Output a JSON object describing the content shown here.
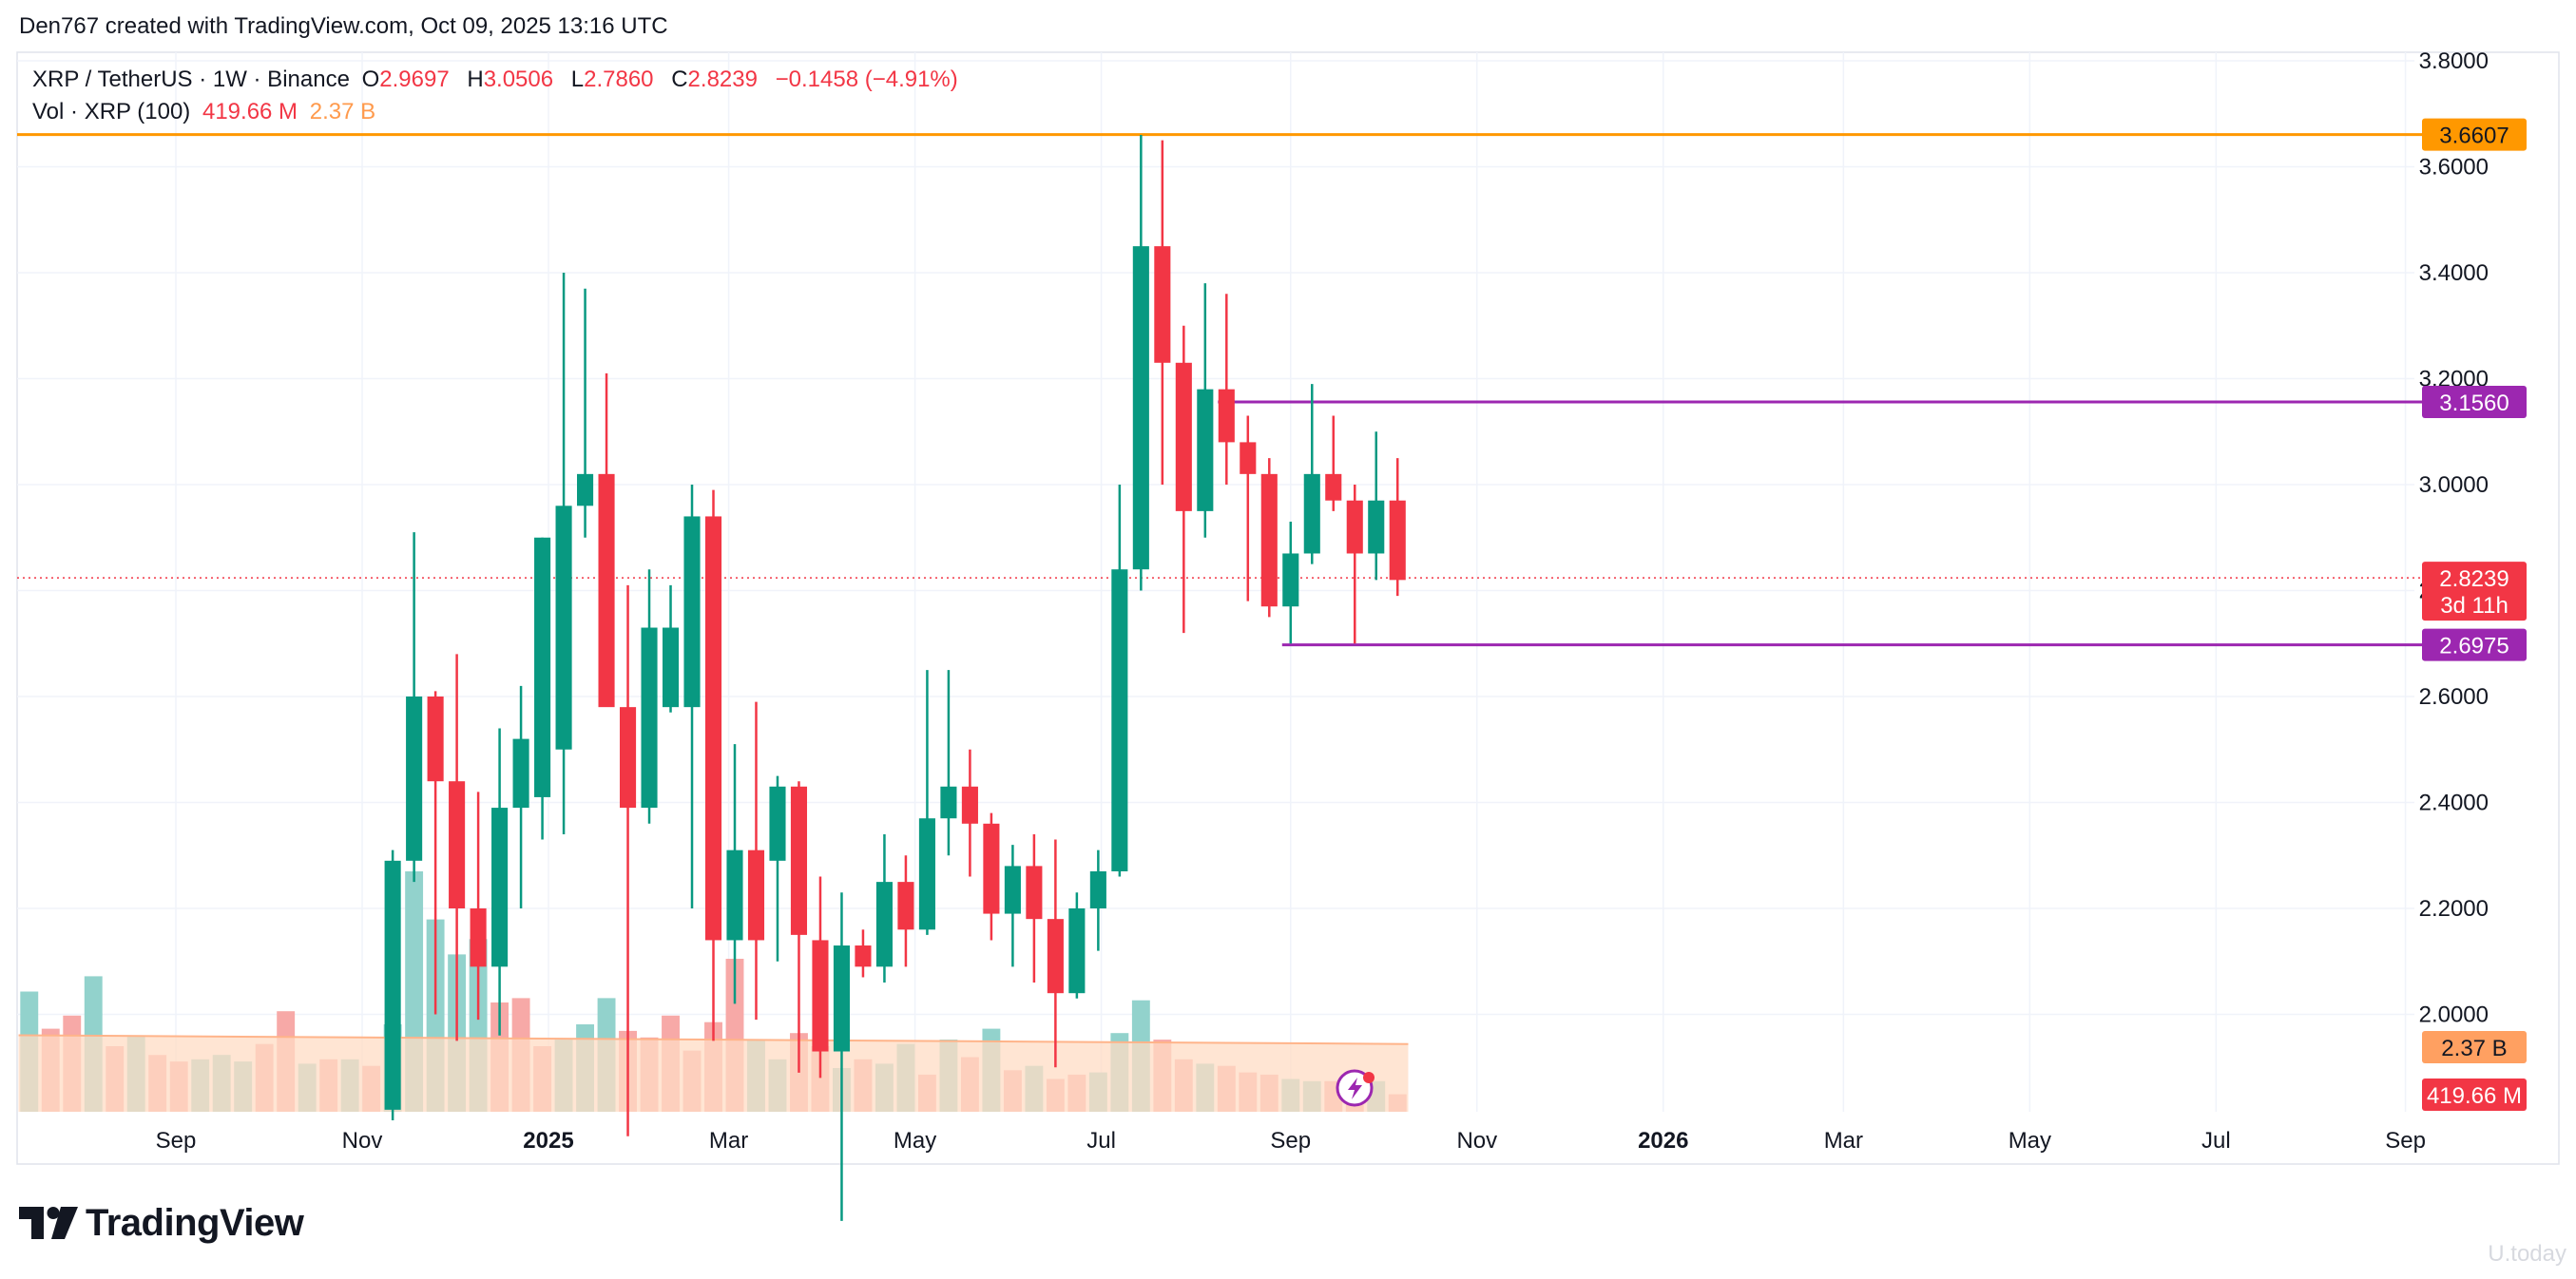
{
  "header": {
    "attribution": "Den767 created with TradingView.com, Oct 09, 2025 13:16 UTC"
  },
  "legend": {
    "symbol": "XRP / TetherUS · 1W · Binance",
    "o_label": "O",
    "o_value": "2.9697",
    "h_label": "H",
    "h_value": "3.0506",
    "l_label": "L",
    "l_value": "2.7860",
    "c_label": "C",
    "c_value": "2.8239",
    "change": "−0.1458 (−4.91%)",
    "vol_label": "Vol · XRP (100)",
    "vol_value": "419.66 M",
    "vol_ma": "2.37 B"
  },
  "colors": {
    "up": "#089981",
    "down": "#f23645",
    "vol_up": "#92d2cc",
    "vol_down": "#f7a9a7",
    "vol_ma_fill": "#ffdcc4",
    "orange_line": "#ff9800",
    "purple_line": "#9c27b0",
    "grid": "#f0f3fa",
    "axis_text": "#131722"
  },
  "badges": {
    "orange_level": "3.6607",
    "purple_high": "3.1560",
    "last_price": "2.8239",
    "countdown": "3d 11h",
    "purple_low": "2.6975",
    "vol_ma": "2.37 B",
    "vol_last": "419.66 M"
  },
  "logo": {
    "text": "TradingView",
    "icon": "tradingview-logo-icon"
  },
  "watermark": "U.today",
  "chart_data": {
    "type": "candlestick",
    "symbol": "XRP / TetherUS",
    "interval": "1W",
    "exchange": "Binance",
    "y_axis": {
      "range": [
        1.8,
        3.83
      ],
      "ticks": [
        "3.8000",
        "3.6000",
        "3.4000",
        "3.2000",
        "3.0000",
        "2.8000",
        "2.6000",
        "2.4000",
        "2.2000",
        "2.0000"
      ]
    },
    "x_axis": {
      "ticks": [
        {
          "label": "Sep",
          "date": "2024-09-01"
        },
        {
          "label": "Nov",
          "date": "2024-11-01"
        },
        {
          "label": "2025",
          "date": "2025-01-01",
          "bold": true
        },
        {
          "label": "Mar",
          "date": "2025-03-01"
        },
        {
          "label": "May",
          "date": "2025-05-01"
        },
        {
          "label": "Jul",
          "date": "2025-07-01"
        },
        {
          "label": "Sep",
          "date": "2025-09-01"
        },
        {
          "label": "Nov",
          "date": "2025-11-01"
        },
        {
          "label": "2026",
          "date": "2026-01-01",
          "bold": true
        },
        {
          "label": "Mar",
          "date": "2026-03-01"
        },
        {
          "label": "May",
          "date": "2026-05-01"
        },
        {
          "label": "Jul",
          "date": "2026-07-01"
        },
        {
          "label": "Sep",
          "date": "2026-09-01"
        }
      ]
    },
    "horizontal_lines": [
      {
        "price": 3.6607,
        "color": "#ff9800",
        "start": "2024-07-15"
      },
      {
        "price": 3.156,
        "color": "#9c27b0",
        "start": "2025-08-11"
      },
      {
        "price": 2.6975,
        "color": "#9c27b0",
        "start": "2025-09-01"
      }
    ],
    "last_price_line": 2.8239,
    "candles": [
      {
        "date": "2024-11-11",
        "o": 1.82,
        "h": 2.31,
        "l": 1.8,
        "c": 2.29
      },
      {
        "date": "2024-11-18",
        "o": 2.29,
        "h": 2.91,
        "l": 2.25,
        "c": 2.6
      },
      {
        "date": "2024-11-25",
        "o": 2.6,
        "h": 2.61,
        "l": 2.0,
        "c": 2.44
      },
      {
        "date": "2024-12-02",
        "o": 2.44,
        "h": 2.68,
        "l": 1.95,
        "c": 2.2
      },
      {
        "date": "2024-12-09",
        "o": 2.2,
        "h": 2.42,
        "l": 1.99,
        "c": 2.09
      },
      {
        "date": "2024-12-16",
        "o": 2.09,
        "h": 2.54,
        "l": 1.96,
        "c": 2.39
      },
      {
        "date": "2024-12-23",
        "o": 2.39,
        "h": 2.62,
        "l": 2.2,
        "c": 2.52
      },
      {
        "date": "2024-12-30",
        "o": 2.41,
        "h": 2.9,
        "l": 2.33,
        "c": 2.9
      },
      {
        "date": "2025-01-06",
        "o": 2.5,
        "h": 3.4,
        "l": 2.34,
        "c": 2.96
      },
      {
        "date": "2025-01-13",
        "o": 2.96,
        "h": 3.37,
        "l": 2.9,
        "c": 3.02
      },
      {
        "date": "2025-01-20",
        "o": 3.02,
        "h": 3.21,
        "l": 2.6,
        "c": 2.58
      },
      {
        "date": "2025-01-27",
        "o": 2.58,
        "h": 2.81,
        "l": 1.77,
        "c": 2.39
      },
      {
        "date": "2025-02-03",
        "o": 2.39,
        "h": 2.84,
        "l": 2.36,
        "c": 2.73
      },
      {
        "date": "2025-02-10",
        "o": 2.58,
        "h": 2.81,
        "l": 2.57,
        "c": 2.73
      },
      {
        "date": "2025-02-17",
        "o": 2.58,
        "h": 3.0,
        "l": 2.2,
        "c": 2.94
      },
      {
        "date": "2025-02-24",
        "o": 2.94,
        "h": 2.99,
        "l": 1.95,
        "c": 2.14
      },
      {
        "date": "2025-03-03",
        "o": 2.14,
        "h": 2.51,
        "l": 2.02,
        "c": 2.31
      },
      {
        "date": "2025-03-10",
        "o": 2.31,
        "h": 2.59,
        "l": 1.99,
        "c": 2.14
      },
      {
        "date": "2025-03-17",
        "o": 2.29,
        "h": 2.45,
        "l": 2.1,
        "c": 2.43
      },
      {
        "date": "2025-03-24",
        "o": 2.43,
        "h": 2.44,
        "l": 1.89,
        "c": 2.15
      },
      {
        "date": "2025-03-31",
        "o": 2.14,
        "h": 2.26,
        "l": 1.88,
        "c": 1.93
      },
      {
        "date": "2025-04-07",
        "o": 1.93,
        "h": 2.23,
        "l": 1.61,
        "c": 2.13
      },
      {
        "date": "2025-04-14",
        "o": 2.13,
        "h": 2.16,
        "l": 2.07,
        "c": 2.09
      },
      {
        "date": "2025-04-21",
        "o": 2.09,
        "h": 2.34,
        "l": 2.06,
        "c": 2.25
      },
      {
        "date": "2025-04-28",
        "o": 2.25,
        "h": 2.3,
        "l": 2.09,
        "c": 2.16
      },
      {
        "date": "2025-05-05",
        "o": 2.16,
        "h": 2.65,
        "l": 2.15,
        "c": 2.37
      },
      {
        "date": "2025-05-12",
        "o": 2.37,
        "h": 2.65,
        "l": 2.3,
        "c": 2.43
      },
      {
        "date": "2025-05-19",
        "o": 2.43,
        "h": 2.5,
        "l": 2.26,
        "c": 2.36
      },
      {
        "date": "2025-05-26",
        "o": 2.36,
        "h": 2.38,
        "l": 2.14,
        "c": 2.19
      },
      {
        "date": "2025-06-02",
        "o": 2.19,
        "h": 2.32,
        "l": 2.09,
        "c": 2.28
      },
      {
        "date": "2025-06-09",
        "o": 2.28,
        "h": 2.34,
        "l": 2.06,
        "c": 2.18
      },
      {
        "date": "2025-06-16",
        "o": 2.18,
        "h": 2.33,
        "l": 1.9,
        "c": 2.04
      },
      {
        "date": "2025-06-23",
        "o": 2.04,
        "h": 2.23,
        "l": 2.03,
        "c": 2.2
      },
      {
        "date": "2025-06-30",
        "o": 2.2,
        "h": 2.31,
        "l": 2.12,
        "c": 2.27
      },
      {
        "date": "2025-07-07",
        "o": 2.27,
        "h": 3.0,
        "l": 2.26,
        "c": 2.84
      },
      {
        "date": "2025-07-14",
        "o": 2.84,
        "h": 3.66,
        "l": 2.8,
        "c": 3.45
      },
      {
        "date": "2025-07-21",
        "o": 3.45,
        "h": 3.65,
        "l": 3.0,
        "c": 3.23
      },
      {
        "date": "2025-07-28",
        "o": 3.23,
        "h": 3.3,
        "l": 2.72,
        "c": 2.95
      },
      {
        "date": "2025-08-04",
        "o": 2.95,
        "h": 3.38,
        "l": 2.9,
        "c": 3.18
      },
      {
        "date": "2025-08-11",
        "o": 3.18,
        "h": 3.36,
        "l": 3.0,
        "c": 3.08
      },
      {
        "date": "2025-08-18",
        "o": 3.08,
        "h": 3.13,
        "l": 2.78,
        "c": 3.02
      },
      {
        "date": "2025-08-25",
        "o": 3.02,
        "h": 3.05,
        "l": 2.75,
        "c": 2.77
      },
      {
        "date": "2025-09-01",
        "o": 2.77,
        "h": 2.93,
        "l": 2.7,
        "c": 2.87
      },
      {
        "date": "2025-09-08",
        "o": 2.87,
        "h": 3.19,
        "l": 2.85,
        "c": 3.02
      },
      {
        "date": "2025-09-15",
        "o": 3.02,
        "h": 3.13,
        "l": 2.95,
        "c": 2.97
      },
      {
        "date": "2025-09-22",
        "o": 2.97,
        "h": 3.0,
        "l": 2.7,
        "c": 2.87
      },
      {
        "date": "2025-09-29",
        "o": 2.87,
        "h": 3.1,
        "l": 2.82,
        "c": 2.97
      },
      {
        "date": "2025-10-06",
        "o": 2.97,
        "h": 3.05,
        "l": 2.79,
        "c": 2.82
      }
    ],
    "volume": {
      "unit": "relative",
      "ma_last": "2.37 B",
      "last": "419.66 M",
      "bars": [
        {
          "date": "2024-07-15",
          "v": 0.55,
          "up": true
        },
        {
          "date": "2024-07-22",
          "v": 0.38,
          "up": false
        },
        {
          "date": "2024-07-29",
          "v": 0.44,
          "up": false
        },
        {
          "date": "2024-08-05",
          "v": 0.62,
          "up": true
        },
        {
          "date": "2024-08-12",
          "v": 0.3,
          "up": false
        },
        {
          "date": "2024-08-19",
          "v": 0.35,
          "up": true
        },
        {
          "date": "2024-08-26",
          "v": 0.26,
          "up": false
        },
        {
          "date": "2024-09-02",
          "v": 0.23,
          "up": false
        },
        {
          "date": "2024-09-09",
          "v": 0.24,
          "up": true
        },
        {
          "date": "2024-09-16",
          "v": 0.26,
          "up": true
        },
        {
          "date": "2024-09-23",
          "v": 0.23,
          "up": true
        },
        {
          "date": "2024-09-30",
          "v": 0.31,
          "up": false
        },
        {
          "date": "2024-10-07",
          "v": 0.46,
          "up": false
        },
        {
          "date": "2024-10-14",
          "v": 0.22,
          "up": true
        },
        {
          "date": "2024-10-21",
          "v": 0.24,
          "up": false
        },
        {
          "date": "2024-10-28",
          "v": 0.24,
          "up": true
        },
        {
          "date": "2024-11-04",
          "v": 0.21,
          "up": false
        },
        {
          "date": "2024-11-11",
          "v": 0.4,
          "up": true
        },
        {
          "date": "2024-11-18",
          "v": 1.1,
          "up": true
        },
        {
          "date": "2024-11-25",
          "v": 0.88,
          "up": true
        },
        {
          "date": "2024-12-02",
          "v": 0.72,
          "up": true
        },
        {
          "date": "2024-12-09",
          "v": 0.79,
          "up": true
        },
        {
          "date": "2024-12-16",
          "v": 0.5,
          "up": false
        },
        {
          "date": "2024-12-23",
          "v": 0.52,
          "up": false
        },
        {
          "date": "2024-12-30",
          "v": 0.3,
          "up": false
        },
        {
          "date": "2025-01-06",
          "v": 0.33,
          "up": true
        },
        {
          "date": "2025-01-13",
          "v": 0.4,
          "up": true
        },
        {
          "date": "2025-01-20",
          "v": 0.52,
          "up": true
        },
        {
          "date": "2025-01-27",
          "v": 0.37,
          "up": false
        },
        {
          "date": "2025-02-03",
          "v": 0.34,
          "up": false
        },
        {
          "date": "2025-02-10",
          "v": 0.44,
          "up": false
        },
        {
          "date": "2025-02-17",
          "v": 0.28,
          "up": false
        },
        {
          "date": "2025-02-24",
          "v": 0.41,
          "up": false
        },
        {
          "date": "2025-03-03",
          "v": 0.7,
          "up": false
        },
        {
          "date": "2025-03-10",
          "v": 0.33,
          "up": true
        },
        {
          "date": "2025-03-17",
          "v": 0.24,
          "up": true
        },
        {
          "date": "2025-03-24",
          "v": 0.36,
          "up": false
        },
        {
          "date": "2025-03-31",
          "v": 0.3,
          "up": false
        },
        {
          "date": "2025-04-07",
          "v": 0.2,
          "up": true
        },
        {
          "date": "2025-04-14",
          "v": 0.24,
          "up": false
        },
        {
          "date": "2025-04-21",
          "v": 0.22,
          "up": true
        },
        {
          "date": "2025-04-28",
          "v": 0.31,
          "up": true
        },
        {
          "date": "2025-05-05",
          "v": 0.17,
          "up": false
        },
        {
          "date": "2025-05-12",
          "v": 0.33,
          "up": true
        },
        {
          "date": "2025-05-19",
          "v": 0.25,
          "up": false
        },
        {
          "date": "2025-05-26",
          "v": 0.38,
          "up": true
        },
        {
          "date": "2025-06-02",
          "v": 0.19,
          "up": false
        },
        {
          "date": "2025-06-09",
          "v": 0.21,
          "up": true
        },
        {
          "date": "2025-06-16",
          "v": 0.15,
          "up": false
        },
        {
          "date": "2025-06-23",
          "v": 0.17,
          "up": false
        },
        {
          "date": "2025-06-30",
          "v": 0.18,
          "up": true
        },
        {
          "date": "2025-07-07",
          "v": 0.36,
          "up": true
        },
        {
          "date": "2025-07-14",
          "v": 0.51,
          "up": true
        },
        {
          "date": "2025-07-21",
          "v": 0.33,
          "up": false
        },
        {
          "date": "2025-07-28",
          "v": 0.24,
          "up": false
        },
        {
          "date": "2025-08-04",
          "v": 0.22,
          "up": true
        },
        {
          "date": "2025-08-11",
          "v": 0.21,
          "up": false
        },
        {
          "date": "2025-08-18",
          "v": 0.18,
          "up": false
        },
        {
          "date": "2025-08-25",
          "v": 0.17,
          "up": false
        },
        {
          "date": "2025-09-01",
          "v": 0.15,
          "up": true
        },
        {
          "date": "2025-09-08",
          "v": 0.14,
          "up": true
        },
        {
          "date": "2025-09-15",
          "v": 0.14,
          "up": false
        },
        {
          "date": "2025-09-22",
          "v": 0.13,
          "up": false
        },
        {
          "date": "2025-09-29",
          "v": 0.14,
          "up": true
        },
        {
          "date": "2025-10-06",
          "v": 0.08,
          "up": false
        }
      ],
      "ma_start": 0.35,
      "ma_end": 0.31
    }
  }
}
